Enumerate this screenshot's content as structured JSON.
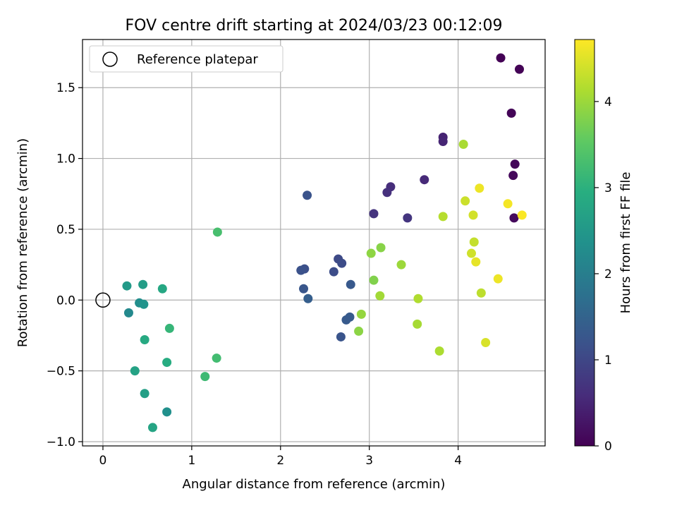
{
  "chart_data": {
    "type": "scatter",
    "title": "FOV centre drift starting at 2024/03/23 00:12:09",
    "xlabel": "Angular distance from reference (arcmin)",
    "ylabel": "Rotation from reference (arcmin)",
    "xlim": [
      -0.23,
      4.98
    ],
    "ylim": [
      -1.03,
      1.84
    ],
    "xticks": [
      0,
      1,
      2,
      3,
      4
    ],
    "xtick_labels": [
      "0",
      "1",
      "2",
      "3",
      "4"
    ],
    "yticks": [
      -1.0,
      -0.5,
      0.0,
      0.5,
      1.0,
      1.5
    ],
    "ytick_labels": [
      "−1.0",
      "−0.5",
      "0.0",
      "0.5",
      "1.0",
      "1.5"
    ],
    "grid": true,
    "legend": {
      "position": "upper-left",
      "entries": [
        "Reference platepar"
      ]
    },
    "reference_point": {
      "x": 0.0,
      "y": 0.0
    },
    "colorbar": {
      "label": "Hours from first FF file",
      "colormap": "viridis",
      "range": [
        0,
        4.72
      ],
      "ticks": [
        0,
        1,
        2,
        3,
        4
      ],
      "tick_labels": [
        "0",
        "1",
        "2",
        "3",
        "4"
      ]
    },
    "points": [
      {
        "x": 4.48,
        "y": 1.71,
        "c": 0.02
      },
      {
        "x": 4.69,
        "y": 1.63,
        "c": 0.03
      },
      {
        "x": 4.6,
        "y": 1.32,
        "c": 0.05
      },
      {
        "x": 4.64,
        "y": 0.96,
        "c": 0.08
      },
      {
        "x": 4.62,
        "y": 0.88,
        "c": 0.1
      },
      {
        "x": 4.63,
        "y": 0.58,
        "c": 0.12
      },
      {
        "x": 3.83,
        "y": 1.15,
        "c": 0.45
      },
      {
        "x": 3.83,
        "y": 1.12,
        "c": 0.48
      },
      {
        "x": 3.62,
        "y": 0.85,
        "c": 0.55
      },
      {
        "x": 3.24,
        "y": 0.8,
        "c": 0.6
      },
      {
        "x": 3.2,
        "y": 0.76,
        "c": 0.65
      },
      {
        "x": 3.05,
        "y": 0.61,
        "c": 0.7
      },
      {
        "x": 3.43,
        "y": 0.58,
        "c": 0.72
      },
      {
        "x": 2.3,
        "y": 0.74,
        "c": 1.2
      },
      {
        "x": 2.65,
        "y": 0.29,
        "c": 1.05
      },
      {
        "x": 2.69,
        "y": 0.26,
        "c": 1.08
      },
      {
        "x": 2.27,
        "y": 0.22,
        "c": 1.15
      },
      {
        "x": 2.23,
        "y": 0.21,
        "c": 1.18
      },
      {
        "x": 2.6,
        "y": 0.2,
        "c": 1.1
      },
      {
        "x": 2.79,
        "y": 0.11,
        "c": 1.3
      },
      {
        "x": 2.26,
        "y": 0.08,
        "c": 1.25
      },
      {
        "x": 2.31,
        "y": 0.01,
        "c": 1.4
      },
      {
        "x": 2.78,
        "y": -0.12,
        "c": 1.35
      },
      {
        "x": 2.74,
        "y": -0.14,
        "c": 1.33
      },
      {
        "x": 2.68,
        "y": -0.26,
        "c": 1.22
      },
      {
        "x": 0.27,
        "y": 0.1,
        "c": 2.55
      },
      {
        "x": 0.45,
        "y": 0.11,
        "c": 2.6
      },
      {
        "x": 0.67,
        "y": 0.08,
        "c": 2.8
      },
      {
        "x": 0.41,
        "y": -0.02,
        "c": 2.3
      },
      {
        "x": 0.46,
        "y": -0.03,
        "c": 2.4
      },
      {
        "x": 0.29,
        "y": -0.09,
        "c": 2.2
      },
      {
        "x": 0.75,
        "y": -0.2,
        "c": 3.1
      },
      {
        "x": 0.47,
        "y": -0.28,
        "c": 2.85
      },
      {
        "x": 0.72,
        "y": -0.44,
        "c": 2.9
      },
      {
        "x": 0.36,
        "y": -0.5,
        "c": 2.7
      },
      {
        "x": 0.47,
        "y": -0.66,
        "c": 2.65
      },
      {
        "x": 0.72,
        "y": -0.79,
        "c": 2.35
      },
      {
        "x": 0.56,
        "y": -0.9,
        "c": 2.75
      },
      {
        "x": 1.29,
        "y": 0.48,
        "c": 3.3
      },
      {
        "x": 1.28,
        "y": -0.41,
        "c": 3.25
      },
      {
        "x": 1.15,
        "y": -0.54,
        "c": 3.2
      },
      {
        "x": 4.06,
        "y": 1.1,
        "c": 4.1
      },
      {
        "x": 4.24,
        "y": 0.79,
        "c": 4.6
      },
      {
        "x": 4.08,
        "y": 0.7,
        "c": 4.35
      },
      {
        "x": 4.56,
        "y": 0.68,
        "c": 4.65
      },
      {
        "x": 4.17,
        "y": 0.6,
        "c": 4.4
      },
      {
        "x": 4.72,
        "y": 0.6,
        "c": 4.7
      },
      {
        "x": 3.83,
        "y": 0.59,
        "c": 4.2
      },
      {
        "x": 4.18,
        "y": 0.41,
        "c": 4.3
      },
      {
        "x": 4.15,
        "y": 0.33,
        "c": 4.38
      },
      {
        "x": 4.2,
        "y": 0.27,
        "c": 4.55
      },
      {
        "x": 4.45,
        "y": 0.15,
        "c": 4.6
      },
      {
        "x": 4.26,
        "y": 0.05,
        "c": 4.25
      },
      {
        "x": 4.31,
        "y": -0.3,
        "c": 4.45
      },
      {
        "x": 3.13,
        "y": 0.37,
        "c": 3.85
      },
      {
        "x": 3.02,
        "y": 0.33,
        "c": 3.9
      },
      {
        "x": 3.36,
        "y": 0.25,
        "c": 4.0
      },
      {
        "x": 3.05,
        "y": 0.14,
        "c": 3.8
      },
      {
        "x": 3.12,
        "y": 0.03,
        "c": 4.05
      },
      {
        "x": 3.55,
        "y": 0.01,
        "c": 4.15
      },
      {
        "x": 2.91,
        "y": -0.1,
        "c": 3.95
      },
      {
        "x": 3.54,
        "y": -0.17,
        "c": 4.08
      },
      {
        "x": 2.88,
        "y": -0.22,
        "c": 3.88
      },
      {
        "x": 3.79,
        "y": -0.36,
        "c": 4.12
      }
    ]
  }
}
